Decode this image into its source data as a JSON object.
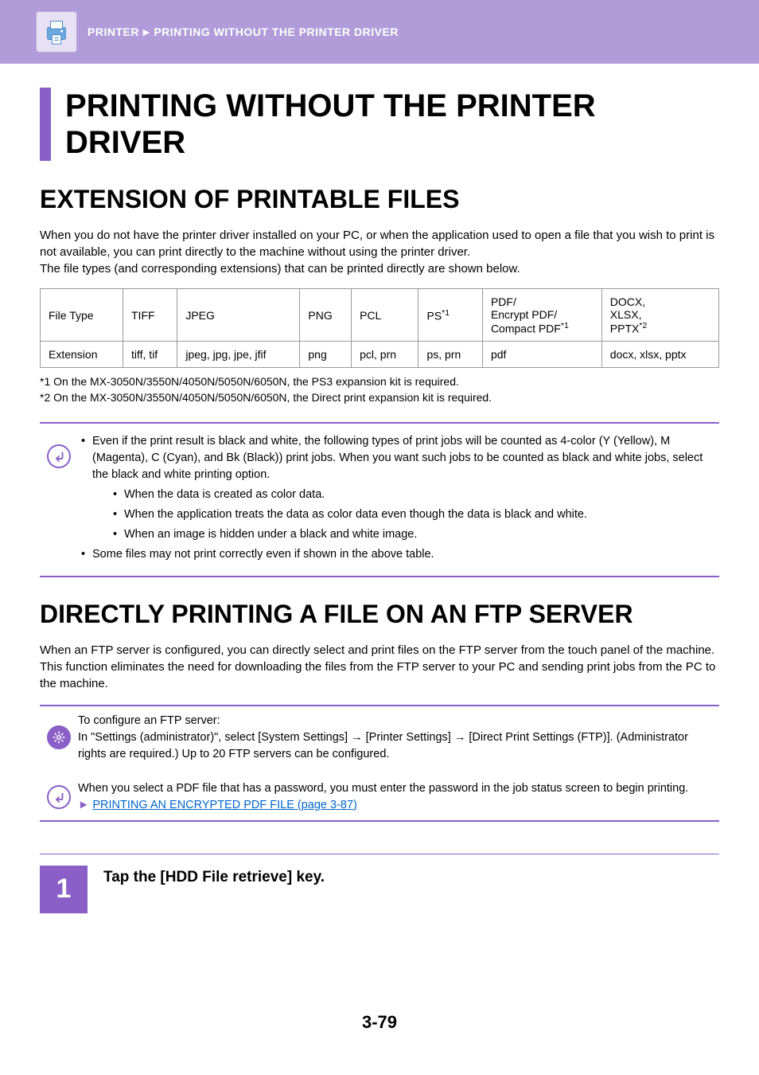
{
  "colors": {
    "header_bg": "#b19cd9",
    "accent": "#8a5fc7",
    "text": "#000000",
    "link": "#0066cc",
    "header_text": "#ffffff"
  },
  "header": {
    "breadcrumb_section": "PRINTER",
    "breadcrumb_arrow": "►",
    "breadcrumb_page": "PRINTING WITHOUT THE PRINTER DRIVER"
  },
  "main_title": "PRINTING WITHOUT THE PRINTER DRIVER",
  "section1": {
    "title": "EXTENSION OF PRINTABLE FILES",
    "intro_para1": "When you do not have the printer driver installed on your PC, or when the application used to open a file that you wish to print is not available, you can print directly to the machine without using the printer driver.",
    "intro_para2": "The file types (and corresponding extensions) that can be printed directly are shown below.",
    "table": {
      "row_labels": [
        "File Type",
        "Extension"
      ],
      "columns": [
        {
          "type": "TIFF",
          "ext": "tiff, tif"
        },
        {
          "type": "JPEG",
          "ext": "jpeg, jpg, jpe, jfif"
        },
        {
          "type": "PNG",
          "ext": "png"
        },
        {
          "type": "PCL",
          "ext": "pcl, prn"
        },
        {
          "type_html": "PS<span class='sup'>*1</span>",
          "ext": "ps, prn"
        },
        {
          "type_html": "PDF/<br>Encrypt PDF/<br>Compact PDF<span class='sup'>*1</span>",
          "ext": "pdf"
        },
        {
          "type_html": "DOCX,<br>XLSX,<br>PPTX<span class='sup'>*2</span>",
          "ext": "docx, xlsx, pptx"
        }
      ],
      "col_widths": [
        "12%",
        "11%",
        "12%",
        "11%",
        "7%",
        "11%",
        "16%",
        "11%"
      ]
    },
    "footnote1": "*1 On the MX-3050N/3550N/4050N/5050N/6050N, the PS3 expansion kit is required.",
    "footnote2": "*2 On the MX-3050N/3550N/4050N/5050N/6050N, the Direct print expansion kit is required.",
    "note": {
      "bullets": [
        "Even if the print result is black and white, the following types of print jobs will be counted as 4-color (Y (Yellow), M (Magenta), C (Cyan), and Bk (Black)) print jobs. When you want such jobs to be counted as black and white jobs, select the black and white printing option.",
        "Some files may not print correctly even if shown in the above table."
      ],
      "inner_bullets": [
        "When the data is created as color data.",
        "When the application treats the data as color data even though the data is black and white.",
        "When an image is hidden under a black and white image."
      ]
    }
  },
  "section2": {
    "title": "DIRECTLY PRINTING A FILE ON AN FTP SERVER",
    "intro": "When an FTP server is configured, you can directly select and print files on the FTP server from the touch panel of the machine. This function eliminates the need for downloading the files from the FTP server to your PC and sending print jobs from the PC to the machine.",
    "config_note_line1": "To configure an FTP server:",
    "config_note_line2": "In \"Settings (administrator)\", select [System Settings] → [Printer Settings] → [Direct Print Settings (FTP)].  (Administrator rights are required.) Up to 20 FTP servers can be configured.",
    "pdf_note": "When you select a PDF file that has a password, you must enter the password in the job status screen to begin printing.",
    "link_text": "PRINTING AN ENCRYPTED PDF FILE (page 3-87)"
  },
  "step1": {
    "num": "1",
    "text": "Tap the [HDD File retrieve] key."
  },
  "page_number": "3-79"
}
